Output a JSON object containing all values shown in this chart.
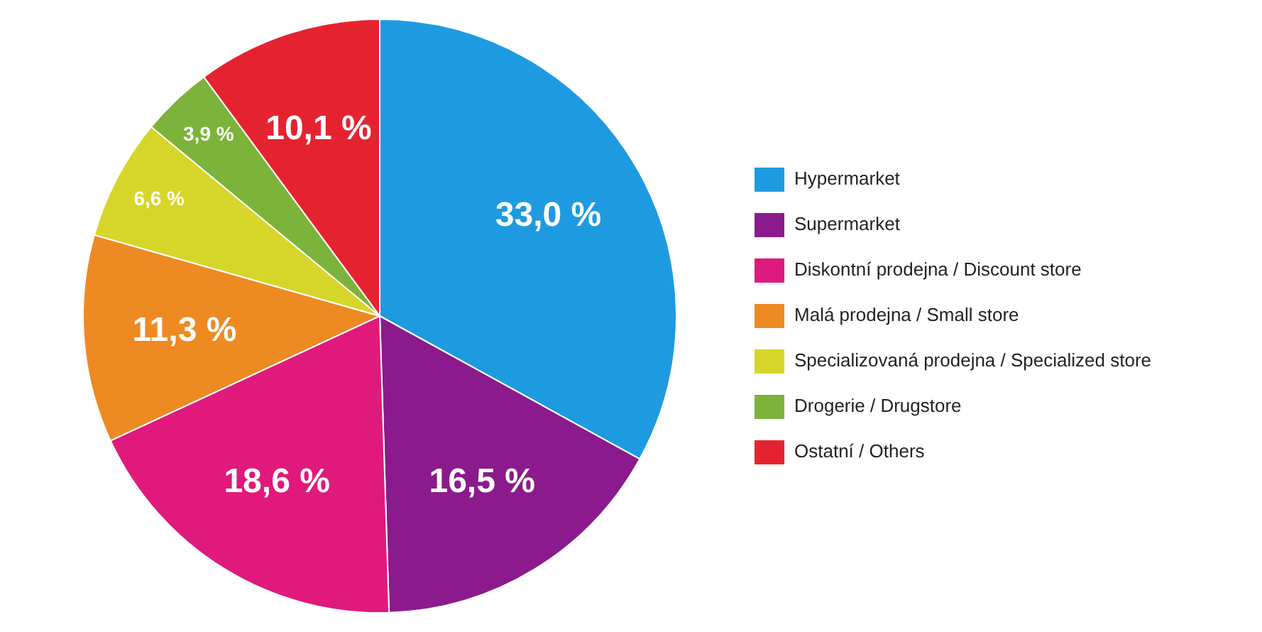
{
  "chart_data": {
    "type": "pie",
    "categories": [
      "Hypermarket",
      "Supermarket",
      "Diskontní prodejna / Discount store",
      "Malá prodejna / Small store",
      "Specializovaná prodejna / Specialized store",
      "Drogerie / Drugstore",
      "Ostatní / Others"
    ],
    "values": [
      33.0,
      16.5,
      18.6,
      11.3,
      6.6,
      3.9,
      10.1
    ],
    "colors": [
      "#1e9be0",
      "#8b1a8c",
      "#e0197d",
      "#ee8a22",
      "#d6d62a",
      "#7cb33a",
      "#e52330"
    ],
    "value_labels": [
      "33,0 %",
      "16,5 %",
      "18,6 %",
      "11,3 %",
      "6,6 %",
      "3,9 %",
      "10,1 %"
    ],
    "legend": "right"
  }
}
